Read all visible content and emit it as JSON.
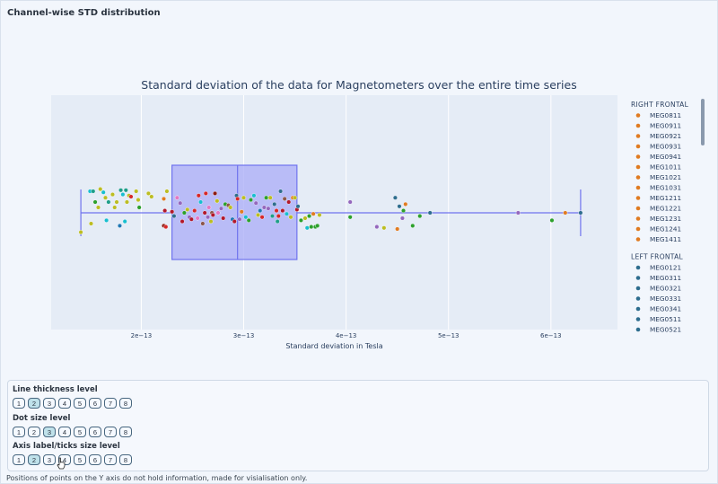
{
  "page": {
    "section_title": "Channel-wise STD distribution",
    "footnote": "Positions of points on the Y axis do not hold information, made for visialisation only."
  },
  "controls": [
    {
      "label": "Line thickness level",
      "options": [
        "1",
        "2",
        "3",
        "4",
        "5",
        "6",
        "7",
        "8"
      ],
      "selected": "2"
    },
    {
      "label": "Dot size level",
      "options": [
        "1",
        "2",
        "3",
        "4",
        "5",
        "6",
        "7",
        "8"
      ],
      "selected": "3"
    },
    {
      "label": "Axis label/ticks size level",
      "options": [
        "1",
        "2",
        "3",
        "4",
        "5",
        "6",
        "7",
        "8"
      ],
      "selected": "2"
    }
  ],
  "colors": {
    "plot_bg": "#e5ecf6",
    "box_fill": "#aeb0f7",
    "box_line": "#6f73ee",
    "right_frontal": "#e07b21",
    "left_frontal": "#2e6d8e"
  },
  "chart_data": {
    "type": "scatter",
    "title": "Standard deviation of the data for Magnetometers over the entire time series",
    "xlabel": "Standard deviation in Tesla",
    "ylabel": "",
    "xlim": [
      1.12e-13,
      6.65e-13
    ],
    "x_ticks": [
      2e-13,
      3e-13,
      4e-13,
      5e-13,
      6e-13
    ],
    "x_tick_labels": [
      "2e−13",
      "3e−13",
      "4e−13",
      "5e−13",
      "6e−13"
    ],
    "grid": true,
    "legend_position": "right",
    "box": {
      "min": 1.41e-13,
      "q1": 2.3e-13,
      "median": 2.94e-13,
      "q3": 3.52e-13,
      "max": 6.29e-13
    },
    "legend_groups": [
      {
        "title": "RIGHT FRONTAL",
        "color": "#e07b21",
        "items": [
          "MEG0811",
          "MEG0911",
          "MEG0921",
          "MEG0931",
          "MEG0941",
          "MEG1011",
          "MEG1021",
          "MEG1031",
          "MEG1211",
          "MEG1221",
          "MEG1231",
          "MEG1241",
          "MEG1411"
        ]
      },
      {
        "title": "LEFT FRONTAL",
        "color": "#2e6d8e",
        "items": [
          "MEG0121",
          "MEG0311",
          "MEG0321",
          "MEG0331",
          "MEG0341",
          "MEG0511",
          "MEG0521"
        ]
      }
    ],
    "points": [
      {
        "x": 1.41e-13,
        "y": -0.18,
        "c": "#bcbd22"
      },
      {
        "x": 1.5e-13,
        "y": 0.2,
        "c": "#17becf"
      },
      {
        "x": 1.53e-13,
        "y": 0.2,
        "c": "#1f9e89"
      },
      {
        "x": 1.51e-13,
        "y": -0.1,
        "c": "#bcbd22"
      },
      {
        "x": 1.55e-13,
        "y": 0.1,
        "c": "#2ca02c"
      },
      {
        "x": 1.6e-13,
        "y": 0.22,
        "c": "#bcbd22"
      },
      {
        "x": 1.58e-13,
        "y": 0.05,
        "c": "#bcbd22"
      },
      {
        "x": 1.63e-13,
        "y": 0.19,
        "c": "#17becf"
      },
      {
        "x": 1.65e-13,
        "y": 0.14,
        "c": "#bcbd22"
      },
      {
        "x": 1.66e-13,
        "y": -0.07,
        "c": "#17becf"
      },
      {
        "x": 1.68e-13,
        "y": 0.1,
        "c": "#1f9e89"
      },
      {
        "x": 1.72e-13,
        "y": 0.17,
        "c": "#bcbd22"
      },
      {
        "x": 1.74e-13,
        "y": 0.05,
        "c": "#bcbd22"
      },
      {
        "x": 1.76e-13,
        "y": 0.1,
        "c": "#bcbd22"
      },
      {
        "x": 1.79e-13,
        "y": -0.12,
        "c": "#1f77b4"
      },
      {
        "x": 1.8e-13,
        "y": 0.21,
        "c": "#1f9e89"
      },
      {
        "x": 1.82e-13,
        "y": 0.17,
        "c": "#17becf"
      },
      {
        "x": 1.84e-13,
        "y": -0.08,
        "c": "#17becf"
      },
      {
        "x": 1.85e-13,
        "y": 0.21,
        "c": "#1f9e89"
      },
      {
        "x": 1.86e-13,
        "y": 0.1,
        "c": "#bcbd22"
      },
      {
        "x": 1.88e-13,
        "y": 0.16,
        "c": "#bcbd22"
      },
      {
        "x": 1.9e-13,
        "y": 0.15,
        "c": "#d62728"
      },
      {
        "x": 1.95e-13,
        "y": 0.2,
        "c": "#bcbd22"
      },
      {
        "x": 1.97e-13,
        "y": 0.12,
        "c": "#bcbd22"
      },
      {
        "x": 1.98e-13,
        "y": 0.05,
        "c": "#2ca02c"
      },
      {
        "x": 2.07e-13,
        "y": 0.18,
        "c": "#bcbd22"
      },
      {
        "x": 2.1e-13,
        "y": 0.15,
        "c": "#bcbd22"
      },
      {
        "x": 2.22e-13,
        "y": 0.13,
        "c": "#e07b21"
      },
      {
        "x": 2.25e-13,
        "y": 0.2,
        "c": "#bcbd22"
      },
      {
        "x": 2.22e-13,
        "y": -0.12,
        "c": "#8c1c13"
      },
      {
        "x": 2.24e-13,
        "y": -0.13,
        "c": "#d62728"
      },
      {
        "x": 2.23e-13,
        "y": 0.02,
        "c": "#b2182b"
      },
      {
        "x": 2.3e-13,
        "y": 0.01,
        "c": "#b2182b"
      },
      {
        "x": 2.32e-13,
        "y": -0.03,
        "c": "#2e6d8e"
      },
      {
        "x": 2.35e-13,
        "y": 0.14,
        "c": "#e377c2"
      },
      {
        "x": 2.38e-13,
        "y": 0.09,
        "c": "#9467bd"
      },
      {
        "x": 2.4e-13,
        "y": -0.08,
        "c": "#b2182b"
      },
      {
        "x": 2.42e-13,
        "y": 0.0,
        "c": "#2ca02c"
      },
      {
        "x": 2.45e-13,
        "y": 0.03,
        "c": "#bcbd22"
      },
      {
        "x": 2.47e-13,
        "y": -0.04,
        "c": "#9467bd"
      },
      {
        "x": 2.49e-13,
        "y": -0.06,
        "c": "#b2182b"
      },
      {
        "x": 2.52e-13,
        "y": 0.02,
        "c": "#d62728"
      },
      {
        "x": 2.55e-13,
        "y": -0.05,
        "c": "#e377c2"
      },
      {
        "x": 2.56e-13,
        "y": 0.16,
        "c": "#d62728"
      },
      {
        "x": 2.58e-13,
        "y": 0.1,
        "c": "#17becf"
      },
      {
        "x": 2.6e-13,
        "y": -0.1,
        "c": "#8c564b"
      },
      {
        "x": 2.62e-13,
        "y": 0.0,
        "c": "#b2182b"
      },
      {
        "x": 2.63e-13,
        "y": 0.18,
        "c": "#d62728"
      },
      {
        "x": 2.65e-13,
        "y": -0.04,
        "c": "#9467bd"
      },
      {
        "x": 2.66e-13,
        "y": 0.05,
        "c": "#e377c2"
      },
      {
        "x": 2.68e-13,
        "y": -0.08,
        "c": "#bcbd22"
      },
      {
        "x": 2.69e-13,
        "y": 0.0,
        "c": "#8c564b"
      },
      {
        "x": 2.7e-13,
        "y": -0.02,
        "c": "#b2182b"
      },
      {
        "x": 2.72e-13,
        "y": 0.18,
        "c": "#8c1c13"
      },
      {
        "x": 2.74e-13,
        "y": 0.11,
        "c": "#bcbd22"
      },
      {
        "x": 2.75e-13,
        "y": 0.0,
        "c": "#e377c2"
      },
      {
        "x": 2.78e-13,
        "y": 0.04,
        "c": "#9467bd"
      },
      {
        "x": 2.8e-13,
        "y": -0.05,
        "c": "#b2182b"
      },
      {
        "x": 2.82e-13,
        "y": 0.08,
        "c": "#2ca02c"
      },
      {
        "x": 2.85e-13,
        "y": 0.07,
        "c": "#8c564b"
      },
      {
        "x": 2.87e-13,
        "y": 0.05,
        "c": "#bcbd22"
      },
      {
        "x": 2.89e-13,
        "y": -0.06,
        "c": "#1f77b4"
      },
      {
        "x": 2.91e-13,
        "y": -0.08,
        "c": "#b2182b"
      },
      {
        "x": 2.93e-13,
        "y": 0.16,
        "c": "#2e6d8e"
      },
      {
        "x": 2.94e-13,
        "y": 0.13,
        "c": "#d62728"
      },
      {
        "x": 2.96e-13,
        "y": -0.06,
        "c": "#9467bd"
      },
      {
        "x": 2.98e-13,
        "y": 0.01,
        "c": "#e07b21"
      },
      {
        "x": 3e-13,
        "y": 0.14,
        "c": "#bcbd22"
      },
      {
        "x": 3.02e-13,
        "y": -0.04,
        "c": "#17becf"
      },
      {
        "x": 3.05e-13,
        "y": -0.07,
        "c": "#2ca02c"
      },
      {
        "x": 3.07e-13,
        "y": 0.12,
        "c": "#2ca02c"
      },
      {
        "x": 3.1e-13,
        "y": 0.16,
        "c": "#17becf"
      },
      {
        "x": 3.12e-13,
        "y": 0.09,
        "c": "#9467bd"
      },
      {
        "x": 3.14e-13,
        "y": -0.02,
        "c": "#bcbd22"
      },
      {
        "x": 3.16e-13,
        "y": 0.02,
        "c": "#1f77b4"
      },
      {
        "x": 3.18e-13,
        "y": -0.04,
        "c": "#d62728"
      },
      {
        "x": 3.2e-13,
        "y": 0.05,
        "c": "#9467bd"
      },
      {
        "x": 3.22e-13,
        "y": 0.14,
        "c": "#2ca02c"
      },
      {
        "x": 3.24e-13,
        "y": 0.04,
        "c": "#9467bd"
      },
      {
        "x": 3.26e-13,
        "y": 0.14,
        "c": "#bcbd22"
      },
      {
        "x": 3.28e-13,
        "y": -0.03,
        "c": "#1f9e89"
      },
      {
        "x": 3.3e-13,
        "y": 0.08,
        "c": "#2e6d8e"
      },
      {
        "x": 3.32e-13,
        "y": 0.02,
        "c": "#d62728"
      },
      {
        "x": 3.33e-13,
        "y": -0.08,
        "c": "#1f9e89"
      },
      {
        "x": 3.34e-13,
        "y": -0.03,
        "c": "#d62728"
      },
      {
        "x": 3.36e-13,
        "y": 0.2,
        "c": "#2e6d8e"
      },
      {
        "x": 3.38e-13,
        "y": 0.02,
        "c": "#b2182b"
      },
      {
        "x": 3.4e-13,
        "y": 0.13,
        "c": "#8c564b"
      },
      {
        "x": 3.42e-13,
        "y": -0.01,
        "c": "#17becf"
      },
      {
        "x": 3.44e-13,
        "y": 0.1,
        "c": "#b2182b"
      },
      {
        "x": 3.46e-13,
        "y": -0.04,
        "c": "#bcbd22"
      },
      {
        "x": 3.48e-13,
        "y": 0.14,
        "c": "#e07b21"
      },
      {
        "x": 3.5e-13,
        "y": 0.14,
        "c": "#bcbd22"
      },
      {
        "x": 3.52e-13,
        "y": 0.03,
        "c": "#b2182b"
      },
      {
        "x": 3.53e-13,
        "y": 0.06,
        "c": "#2e6d8e"
      },
      {
        "x": 3.56e-13,
        "y": -0.07,
        "c": "#2ca02c"
      },
      {
        "x": 3.6e-13,
        "y": -0.05,
        "c": "#bcbd22"
      },
      {
        "x": 3.62e-13,
        "y": -0.14,
        "c": "#17becf"
      },
      {
        "x": 3.64e-13,
        "y": -0.03,
        "c": "#2ca02c"
      },
      {
        "x": 3.66e-13,
        "y": -0.13,
        "c": "#2ca02c"
      },
      {
        "x": 3.68e-13,
        "y": -0.01,
        "c": "#e07b21"
      },
      {
        "x": 3.7e-13,
        "y": -0.13,
        "c": "#2ca02c"
      },
      {
        "x": 3.72e-13,
        "y": -0.12,
        "c": "#2ca02c"
      },
      {
        "x": 3.74e-13,
        "y": -0.02,
        "c": "#bcbd22"
      },
      {
        "x": 4.04e-13,
        "y": 0.1,
        "c": "#9467bd"
      },
      {
        "x": 4.04e-13,
        "y": -0.04,
        "c": "#2ca02c"
      },
      {
        "x": 4.3e-13,
        "y": -0.13,
        "c": "#9467bd"
      },
      {
        "x": 4.37e-13,
        "y": -0.14,
        "c": "#bcbd22"
      },
      {
        "x": 4.48e-13,
        "y": 0.14,
        "c": "#2e6d8e"
      },
      {
        "x": 4.5e-13,
        "y": -0.15,
        "c": "#e07b21"
      },
      {
        "x": 4.52e-13,
        "y": 0.06,
        "c": "#2e6d8e"
      },
      {
        "x": 4.55e-13,
        "y": -0.05,
        "c": "#9467bd"
      },
      {
        "x": 4.56e-13,
        "y": 0.02,
        "c": "#2ca02c"
      },
      {
        "x": 4.58e-13,
        "y": 0.08,
        "c": "#e07b21"
      },
      {
        "x": 4.65e-13,
        "y": -0.12,
        "c": "#2ca02c"
      },
      {
        "x": 4.72e-13,
        "y": -0.03,
        "c": "#2ca02c"
      },
      {
        "x": 4.82e-13,
        "y": 0.0,
        "c": "#2e6d8e"
      },
      {
        "x": 5.68e-13,
        "y": 0.0,
        "c": "#9467bd"
      },
      {
        "x": 6.01e-13,
        "y": -0.07,
        "c": "#2ca02c"
      },
      {
        "x": 6.14e-13,
        "y": 0.0,
        "c": "#e07b21"
      },
      {
        "x": 6.29e-13,
        "y": 0.0,
        "c": "#2e6d8e"
      }
    ]
  }
}
